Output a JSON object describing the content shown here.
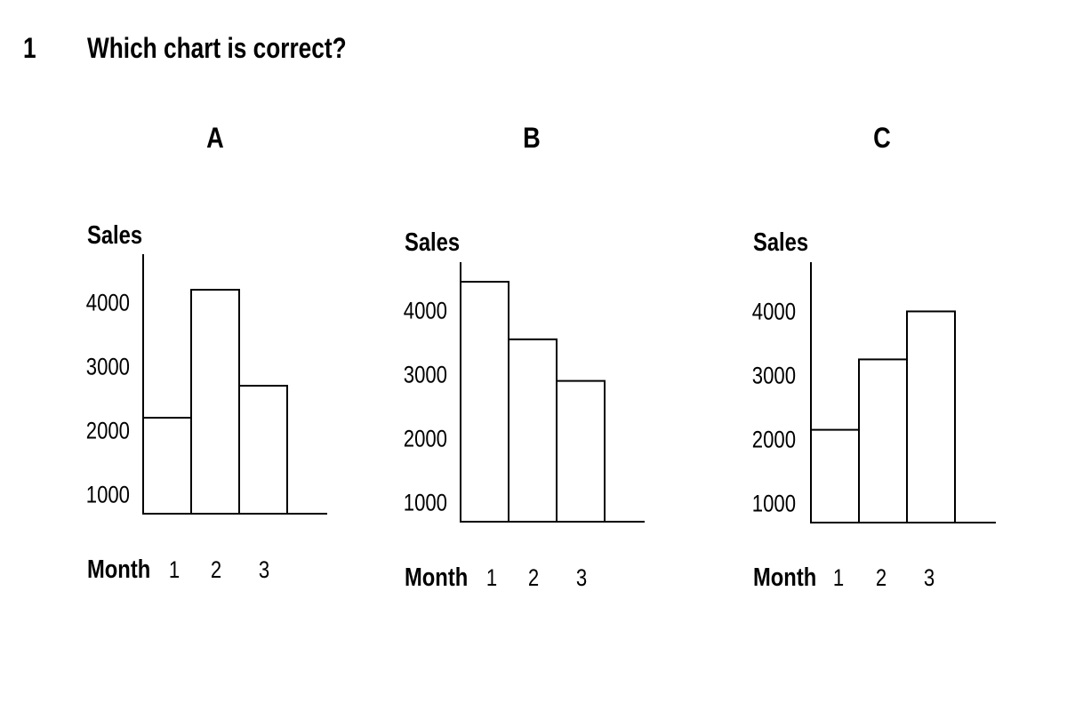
{
  "question": {
    "number": "1",
    "text": "Which chart is correct?"
  },
  "chart_data": [
    {
      "type": "bar",
      "title": "A",
      "ylabel": "Sales",
      "xlabel": "Month",
      "categories": [
        "1",
        "2",
        "3"
      ],
      "values": [
        2200,
        4200,
        2700
      ],
      "yticks": [
        1000,
        2000,
        3000,
        4000
      ],
      "ylim": [
        700,
        4700
      ],
      "grid": false,
      "legend": "none"
    },
    {
      "type": "bar",
      "title": "B",
      "ylabel": "Sales",
      "xlabel": "Month",
      "categories": [
        "1",
        "2",
        "3"
      ],
      "values": [
        4450,
        3550,
        2900
      ],
      "yticks": [
        1000,
        2000,
        3000,
        4000
      ],
      "ylim": [
        700,
        4700
      ],
      "grid": false,
      "legend": "none"
    },
    {
      "type": "bar",
      "title": "C",
      "ylabel": "Sales",
      "xlabel": "Month",
      "categories": [
        "1",
        "2",
        "3"
      ],
      "values": [
        2150,
        3250,
        4000
      ],
      "yticks": [
        1000,
        2000,
        3000,
        4000
      ],
      "ylim": [
        700,
        4700
      ],
      "grid": false,
      "legend": "none"
    }
  ]
}
